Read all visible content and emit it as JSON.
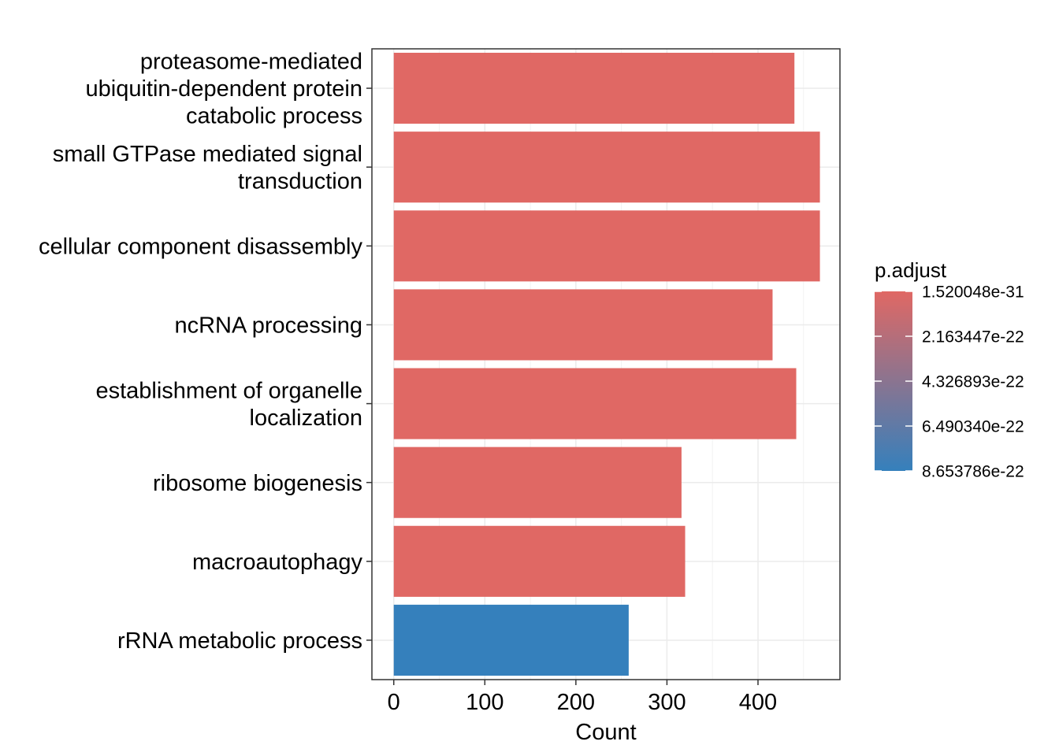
{
  "chart_data": {
    "type": "bar",
    "orientation": "horizontal",
    "xlabel": "Count",
    "ylabel": "",
    "xlim": [
      -24,
      490
    ],
    "xticks": [
      0,
      100,
      200,
      300,
      400
    ],
    "grid": true,
    "categories": [
      "proteasome-mediated ubiquitin-dependent protein catabolic process",
      "small GTPase mediated signal transduction",
      "cellular component disassembly",
      "ncRNA processing",
      "establishment of organelle localization",
      "ribosome biogenesis",
      "macroautophagy",
      "rRNA metabolic process"
    ],
    "category_lines": [
      [
        "proteasome-mediated",
        "ubiquitin-dependent protein",
        "catabolic process"
      ],
      [
        "small GTPase mediated signal",
        "transduction"
      ],
      [
        "cellular component disassembly"
      ],
      [
        "ncRNA processing"
      ],
      [
        "establishment of organelle",
        "localization"
      ],
      [
        "ribosome biogenesis"
      ],
      [
        "macroautophagy"
      ],
      [
        "rRNA metabolic process"
      ]
    ],
    "values": [
      440,
      468,
      468,
      416,
      442,
      316,
      320,
      258
    ],
    "p_adjust": [
      1.520048e-31,
      1.6e-30,
      2e-30,
      3e-28,
      1e-27,
      5e-26,
      1e-24,
      8.653786e-22
    ],
    "legend": {
      "title": "p.adjust",
      "position": "right",
      "labels": [
        "1.520048e-31",
        "2.163447e-22",
        "4.326893e-22",
        "6.490340e-22",
        "8.653786e-22"
      ],
      "low_color": "#E06864",
      "high_color": "#3580BC"
    },
    "bar_colors": [
      "#E06864",
      "#E06864",
      "#E06864",
      "#E06864",
      "#E06864",
      "#E06864",
      "#E06864",
      "#3580BC"
    ]
  }
}
